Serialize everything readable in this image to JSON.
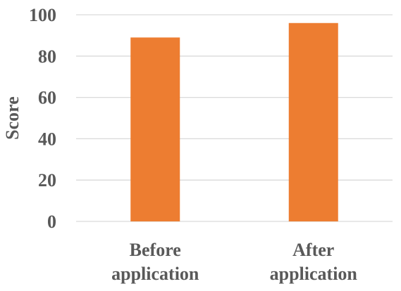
{
  "chart_data": {
    "type": "bar",
    "categories": [
      [
        "Before",
        "application"
      ],
      [
        "After",
        "application"
      ]
    ],
    "values": [
      89,
      96
    ],
    "title": "",
    "xlabel": "",
    "ylabel": "Score",
    "ylim": [
      0,
      100
    ],
    "yticks": [
      "0",
      "20",
      "40",
      "60",
      "80",
      "100"
    ],
    "grid": true,
    "bar_color": "#ED7D31",
    "grid_color": "#D9D9D9",
    "text_color": "#595959"
  }
}
